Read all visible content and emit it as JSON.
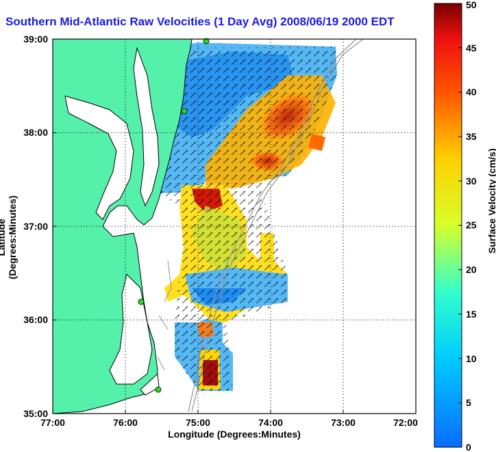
{
  "title": "Southern Mid-Atlantic Raw Velocities (1 Day Avg) 2008/06/19 2000 EDT",
  "x_axis_label": "Longitude (Degrees:Minutes)",
  "y_axis_label": "Latitude (Degrees:Minutes)",
  "colorbar_label": "Surface Velocity (cm/s)",
  "x_ticks": [
    "77:00",
    "76:00",
    "75:00",
    "74:00",
    "73:00",
    "72:00"
  ],
  "y_ticks": [
    "39:00",
    "38:00",
    "37:00",
    "36:00",
    "35:00"
  ],
  "colorbar_ticks": [
    "0",
    "5",
    "10",
    "15",
    "20",
    "25",
    "30",
    "35",
    "40",
    "45",
    "50"
  ],
  "colors": {
    "land": "#55f0aa",
    "title": "#1a1ae6",
    "coast": "#000000",
    "isobath": "#909090",
    "station": "#22dd22"
  },
  "chart_data": {
    "type": "heatmap",
    "x_range_deg": [
      -77,
      -72
    ],
    "y_range_deg": [
      35,
      39
    ],
    "color_range": [
      0,
      50
    ],
    "units": "cm/s",
    "colormap": "jet",
    "grid": true
  }
}
